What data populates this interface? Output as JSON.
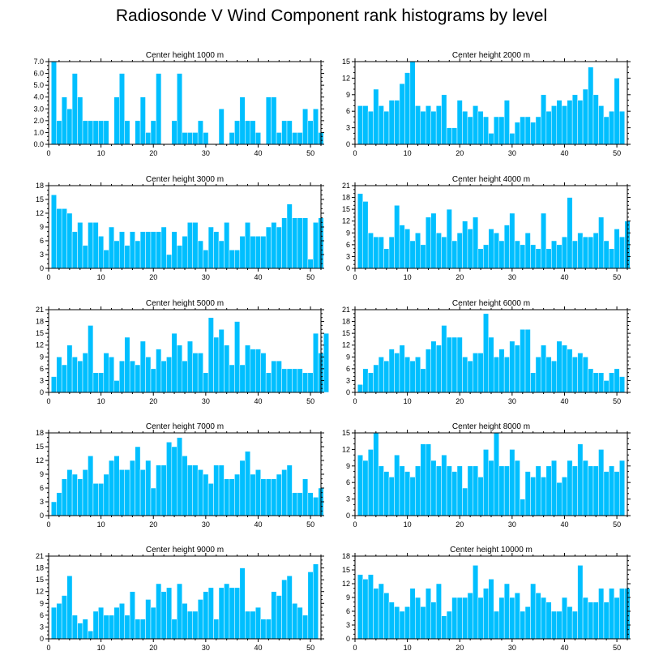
{
  "title": "Radiosonde V Wind Component rank histograms by level",
  "colors": {
    "bar": "#00BFFF",
    "axis": "#000000",
    "background": "#ffffff"
  },
  "chart_data": [
    {
      "type": "bar",
      "title": "Center height 1000 m",
      "xlim": [
        0,
        52
      ],
      "ylim": [
        0,
        7
      ],
      "yticks": [
        0,
        1,
        2,
        3,
        4,
        5,
        6,
        7
      ],
      "ytick_labels": [
        "0.0",
        "1.0",
        "2.0",
        "3.0",
        "4.0",
        "5.0",
        "6.0",
        "7.0"
      ],
      "xticks": [
        0,
        10,
        20,
        30,
        40,
        50
      ],
      "values": [
        7,
        2,
        4,
        3,
        6,
        4,
        2,
        2,
        2,
        2,
        2,
        0,
        4,
        6,
        2,
        0,
        2,
        4,
        1,
        2,
        6,
        0,
        0,
        2,
        6,
        1,
        1,
        1,
        2,
        1,
        0,
        0,
        3,
        0,
        1,
        2,
        4,
        2,
        2,
        1,
        0,
        4,
        4,
        1,
        2,
        2,
        1,
        1,
        3,
        2,
        3,
        1
      ]
    },
    {
      "type": "bar",
      "title": "Center height 2000 m",
      "xlim": [
        0,
        52
      ],
      "ylim": [
        0,
        15
      ],
      "yticks": [
        0,
        3,
        6,
        9,
        12,
        15
      ],
      "ytick_labels": [
        "0",
        "3",
        "6",
        "9",
        "12",
        "15"
      ],
      "xticks": [
        0,
        10,
        20,
        30,
        40,
        50
      ],
      "values": [
        7,
        7,
        6,
        10,
        7,
        6,
        8,
        8,
        11,
        13,
        15,
        7,
        6,
        7,
        6,
        7,
        9,
        3,
        3,
        8,
        6,
        5,
        7,
        6,
        5,
        2,
        5,
        5,
        8,
        2,
        4,
        5,
        5,
        4,
        5,
        9,
        6,
        7,
        8,
        7,
        8,
        9,
        8,
        10,
        14,
        9,
        7,
        5,
        6,
        12,
        6
      ]
    },
    {
      "type": "bar",
      "title": "Center height 3000 m",
      "xlim": [
        0,
        52
      ],
      "ylim": [
        0,
        18
      ],
      "yticks": [
        0,
        3,
        6,
        9,
        12,
        15,
        18
      ],
      "ytick_labels": [
        "0",
        "3",
        "6",
        "9",
        "12",
        "15",
        "18"
      ],
      "xticks": [
        0,
        10,
        20,
        30,
        40,
        50
      ],
      "values": [
        16,
        13,
        13,
        12,
        8,
        10,
        5,
        10,
        10,
        7,
        4,
        9,
        6,
        8,
        5,
        8,
        6,
        8,
        8,
        8,
        8,
        9,
        3,
        8,
        5,
        7,
        10,
        10,
        6,
        4,
        9,
        8,
        6,
        10,
        4,
        4,
        7,
        10,
        7,
        7,
        7,
        9,
        10,
        9,
        11,
        14,
        11,
        11,
        11,
        2,
        10,
        11
      ]
    },
    {
      "type": "bar",
      "title": "Center height 4000 m",
      "xlim": [
        0,
        52
      ],
      "ylim": [
        0,
        21
      ],
      "yticks": [
        0,
        3,
        6,
        9,
        12,
        15,
        18,
        21
      ],
      "ytick_labels": [
        "0",
        "3",
        "6",
        "9",
        "12",
        "15",
        "18",
        "21"
      ],
      "xticks": [
        0,
        10,
        20,
        30,
        40,
        50
      ],
      "values": [
        19,
        17,
        9,
        8,
        8,
        5,
        8,
        16,
        11,
        10,
        7,
        9,
        6,
        13,
        14,
        9,
        8,
        15,
        7,
        9,
        12,
        10,
        13,
        5,
        6,
        10,
        9,
        7,
        11,
        14,
        7,
        6,
        9,
        6,
        5,
        14,
        5,
        7,
        6,
        8,
        18,
        7,
        9,
        8,
        8,
        9,
        13,
        7,
        5,
        10,
        8,
        12
      ]
    },
    {
      "type": "bar",
      "title": "Center height 5000 m",
      "xlim": [
        0,
        52
      ],
      "ylim": [
        0,
        21
      ],
      "yticks": [
        0,
        3,
        6,
        9,
        12,
        15,
        18,
        21
      ],
      "ytick_labels": [
        "0",
        "3",
        "6",
        "9",
        "12",
        "15",
        "18",
        "21"
      ],
      "xticks": [
        0,
        10,
        20,
        30,
        40,
        50
      ],
      "values": [
        4,
        9,
        7,
        12,
        9,
        8,
        10,
        17,
        5,
        5,
        10,
        9,
        3,
        8,
        14,
        8,
        7,
        13,
        9,
        6,
        11,
        8,
        9,
        15,
        12,
        8,
        13,
        10,
        10,
        5,
        19,
        14,
        16,
        12,
        7,
        18,
        7,
        12,
        11,
        11,
        10,
        5,
        8,
        8,
        6,
        6,
        6,
        6,
        5,
        5,
        15,
        10,
        15
      ]
    },
    {
      "type": "bar",
      "title": "Center height 6000 m",
      "xlim": [
        0,
        52
      ],
      "ylim": [
        0,
        21
      ],
      "yticks": [
        0,
        3,
        6,
        9,
        12,
        15,
        18,
        21
      ],
      "ytick_labels": [
        "0",
        "3",
        "6",
        "9",
        "12",
        "15",
        "18",
        "21"
      ],
      "xticks": [
        0,
        10,
        20,
        30,
        40,
        50
      ],
      "values": [
        2,
        6,
        5,
        7,
        9,
        8,
        11,
        10,
        12,
        9,
        8,
        9,
        6,
        11,
        13,
        12,
        17,
        14,
        14,
        14,
        9,
        8,
        10,
        10,
        20,
        14,
        9,
        11,
        9,
        13,
        12,
        16,
        16,
        5,
        9,
        12,
        9,
        8,
        13,
        12,
        11,
        9,
        10,
        9,
        6,
        5,
        5,
        3,
        5,
        6,
        4
      ]
    },
    {
      "type": "bar",
      "title": "Center height 7000 m",
      "xlim": [
        0,
        52
      ],
      "ylim": [
        0,
        18
      ],
      "yticks": [
        0,
        3,
        6,
        9,
        12,
        15,
        18
      ],
      "ytick_labels": [
        "0",
        "3",
        "6",
        "9",
        "12",
        "15",
        "18"
      ],
      "xticks": [
        0,
        10,
        20,
        30,
        40,
        50
      ],
      "values": [
        3,
        5,
        8,
        10,
        9,
        8,
        10,
        13,
        7,
        7,
        9,
        12,
        13,
        10,
        10,
        12,
        15,
        10,
        12,
        6,
        11,
        11,
        16,
        15,
        17,
        13,
        11,
        11,
        10,
        9,
        7,
        11,
        11,
        8,
        8,
        9,
        12,
        14,
        9,
        10,
        8,
        8,
        8,
        9,
        10,
        11,
        5,
        5,
        8,
        5,
        4,
        6
      ]
    },
    {
      "type": "bar",
      "title": "Center height 8000 m",
      "xlim": [
        0,
        52
      ],
      "ylim": [
        0,
        15
      ],
      "yticks": [
        0,
        3,
        6,
        9,
        12,
        15
      ],
      "ytick_labels": [
        "0",
        "3",
        "6",
        "9",
        "12",
        "15"
      ],
      "xticks": [
        0,
        10,
        20,
        30,
        40,
        50
      ],
      "values": [
        11,
        10,
        12,
        15,
        9,
        8,
        7,
        11,
        9,
        8,
        7,
        9,
        13,
        13,
        10,
        9,
        11,
        9,
        8,
        9,
        5,
        9,
        9,
        7,
        12,
        10,
        15,
        9,
        9,
        12,
        10,
        3,
        8,
        7,
        9,
        7,
        9,
        10,
        6,
        7,
        10,
        9,
        13,
        10,
        9,
        9,
        12,
        8,
        9,
        8,
        10
      ]
    },
    {
      "type": "bar",
      "title": "Center height 9000 m",
      "xlim": [
        0,
        52
      ],
      "ylim": [
        0,
        21
      ],
      "yticks": [
        0,
        3,
        6,
        9,
        12,
        15,
        18,
        21
      ],
      "ytick_labels": [
        "0",
        "3",
        "6",
        "9",
        "12",
        "15",
        "18",
        "21"
      ],
      "xticks": [
        0,
        10,
        20,
        30,
        40,
        50
      ],
      "values": [
        8,
        9,
        11,
        16,
        6,
        4,
        5,
        2,
        7,
        8,
        6,
        6,
        8,
        9,
        6,
        12,
        5,
        5,
        10,
        8,
        14,
        12,
        13,
        5,
        14,
        9,
        7,
        7,
        10,
        12,
        13,
        5,
        13,
        14,
        13,
        13,
        18,
        7,
        7,
        8,
        5,
        5,
        12,
        11,
        15,
        16,
        9,
        8,
        6,
        17,
        19
      ]
    },
    {
      "type": "bar",
      "title": "Center height 10000 m",
      "xlim": [
        0,
        52
      ],
      "ylim": [
        0,
        18
      ],
      "yticks": [
        0,
        3,
        6,
        9,
        12,
        15,
        18
      ],
      "ytick_labels": [
        "0",
        "3",
        "6",
        "9",
        "12",
        "15",
        "18"
      ],
      "xticks": [
        0,
        10,
        20,
        30,
        40,
        50
      ],
      "values": [
        14,
        13,
        14,
        11,
        12,
        10,
        8,
        7,
        6,
        7,
        11,
        9,
        7,
        11,
        8,
        12,
        5,
        6,
        9,
        9,
        9,
        10,
        16,
        9,
        11,
        13,
        6,
        9,
        12,
        9,
        10,
        6,
        7,
        12,
        10,
        9,
        8,
        6,
        6,
        9,
        7,
        6,
        16,
        9,
        8,
        8,
        11,
        8,
        11,
        9,
        11,
        11
      ]
    }
  ]
}
